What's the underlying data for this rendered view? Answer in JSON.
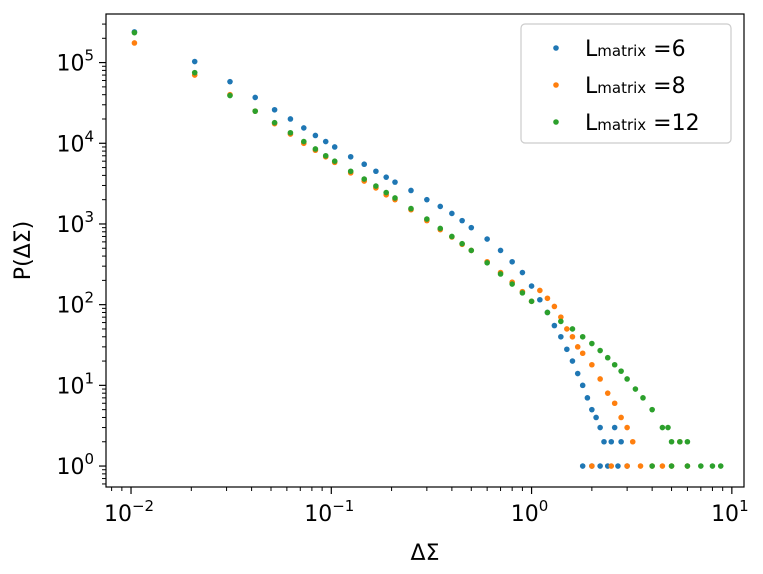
{
  "chart_data": {
    "type": "scatter",
    "xlabel": "ΔΣ",
    "ylabel": "P(ΔΣ)",
    "xscale": "log",
    "yscale": "log",
    "xlim": [
      0.0075,
      11.5
    ],
    "ylim": [
      0.55,
      400000
    ],
    "grid": false,
    "legend_position": "upper right",
    "x_ticks": [
      {
        "base": "10",
        "exp": "−2",
        "value": 0.01
      },
      {
        "base": "10",
        "exp": "−1",
        "value": 0.1
      },
      {
        "base": "10",
        "exp": "0",
        "value": 1
      },
      {
        "base": "10",
        "exp": "1",
        "value": 10
      }
    ],
    "y_ticks": [
      {
        "base": "10",
        "exp": "0",
        "value": 1
      },
      {
        "base": "10",
        "exp": "1",
        "value": 10
      },
      {
        "base": "10",
        "exp": "2",
        "value": 100
      },
      {
        "base": "10",
        "exp": "3",
        "value": 1000
      },
      {
        "base": "10",
        "exp": "4",
        "value": 10000
      },
      {
        "base": "10",
        "exp": "5",
        "value": 100000
      }
    ],
    "series": [
      {
        "name": "Lmatrix =6",
        "legend_main": "L",
        "legend_sub": "matrix",
        "legend_suffix": " =6",
        "color": "#1f77b4",
        "points": [
          [
            0.0104,
            240000
          ],
          [
            0.0208,
            103000
          ],
          [
            0.0312,
            58000
          ],
          [
            0.0417,
            37000
          ],
          [
            0.0521,
            26000
          ],
          [
            0.0625,
            20000
          ],
          [
            0.0729,
            15500
          ],
          [
            0.0833,
            12500
          ],
          [
            0.0938,
            10500
          ],
          [
            0.104,
            9000
          ],
          [
            0.125,
            6800
          ],
          [
            0.146,
            5500
          ],
          [
            0.167,
            4500
          ],
          [
            0.188,
            3800
          ],
          [
            0.208,
            3300
          ],
          [
            0.25,
            2600
          ],
          [
            0.3,
            2000
          ],
          [
            0.35,
            1650
          ],
          [
            0.4,
            1350
          ],
          [
            0.45,
            1100
          ],
          [
            0.5,
            900
          ],
          [
            0.6,
            650
          ],
          [
            0.7,
            470
          ],
          [
            0.8,
            340
          ],
          [
            0.9,
            250
          ],
          [
            1.0,
            170
          ],
          [
            1.1,
            115
          ],
          [
            1.2,
            80
          ],
          [
            1.3,
            55
          ],
          [
            1.4,
            40
          ],
          [
            1.5,
            28
          ],
          [
            1.6,
            20
          ],
          [
            1.7,
            14
          ],
          [
            1.8,
            10
          ],
          [
            1.9,
            7
          ],
          [
            2.0,
            5
          ],
          [
            2.1,
            4
          ],
          [
            2.2,
            3
          ],
          [
            2.3,
            2
          ],
          [
            2.5,
            2
          ],
          [
            1.8,
            1
          ],
          [
            2.0,
            1
          ],
          [
            2.2,
            1
          ],
          [
            2.4,
            1
          ],
          [
            2.7,
            1
          ],
          [
            3.0,
            1
          ],
          [
            2.6,
            3
          ],
          [
            2.8,
            2
          ]
        ]
      },
      {
        "name": "Lmatrix =8",
        "legend_main": "L",
        "legend_sub": "matrix",
        "legend_suffix": " =8",
        "color": "#ff7f0e",
        "points": [
          [
            0.0104,
            175000
          ],
          [
            0.0208,
            70000
          ],
          [
            0.0312,
            40000
          ],
          [
            0.0417,
            25000
          ],
          [
            0.0521,
            17500
          ],
          [
            0.0625,
            13000
          ],
          [
            0.0729,
            10000
          ],
          [
            0.0833,
            8200
          ],
          [
            0.0938,
            6800
          ],
          [
            0.104,
            5800
          ],
          [
            0.125,
            4300
          ],
          [
            0.146,
            3400
          ],
          [
            0.167,
            2800
          ],
          [
            0.188,
            2300
          ],
          [
            0.208,
            2000
          ],
          [
            0.25,
            1500
          ],
          [
            0.3,
            1100
          ],
          [
            0.35,
            850
          ],
          [
            0.4,
            690
          ],
          [
            0.45,
            560
          ],
          [
            0.5,
            470
          ],
          [
            0.6,
            340
          ],
          [
            0.7,
            250
          ],
          [
            0.8,
            190
          ],
          [
            0.9,
            145
          ],
          [
            1.0,
            110
          ],
          [
            1.1,
            150
          ],
          [
            1.2,
            120
          ],
          [
            1.3,
            95
          ],
          [
            1.4,
            70
          ],
          [
            1.5,
            50
          ],
          [
            1.6,
            40
          ],
          [
            1.7,
            30
          ],
          [
            1.8,
            25
          ],
          [
            2.0,
            18
          ],
          [
            2.2,
            12
          ],
          [
            2.4,
            8
          ],
          [
            2.6,
            6
          ],
          [
            2.8,
            4
          ],
          [
            3.0,
            3
          ],
          [
            3.2,
            2
          ],
          [
            2.0,
            1
          ],
          [
            2.5,
            1
          ],
          [
            3.0,
            1
          ],
          [
            3.5,
            1
          ],
          [
            4.0,
            1
          ],
          [
            4.5,
            1
          ],
          [
            5.0,
            1
          ],
          [
            5.5,
            2
          ],
          [
            6.0,
            1
          ]
        ]
      },
      {
        "name": "Lmatrix =12",
        "legend_main": "L",
        "legend_sub": "matrix",
        "legend_suffix": " =12",
        "color": "#2ca02c",
        "points": [
          [
            0.0104,
            235000
          ],
          [
            0.0208,
            75000
          ],
          [
            0.0312,
            39000
          ],
          [
            0.0417,
            25000
          ],
          [
            0.0521,
            18000
          ],
          [
            0.0625,
            13500
          ],
          [
            0.0729,
            10500
          ],
          [
            0.0833,
            8500
          ],
          [
            0.0938,
            7000
          ],
          [
            0.104,
            6000
          ],
          [
            0.125,
            4500
          ],
          [
            0.146,
            3600
          ],
          [
            0.167,
            2950
          ],
          [
            0.188,
            2450
          ],
          [
            0.208,
            2100
          ],
          [
            0.25,
            1550
          ],
          [
            0.3,
            1150
          ],
          [
            0.35,
            880
          ],
          [
            0.4,
            700
          ],
          [
            0.45,
            570
          ],
          [
            0.5,
            470
          ],
          [
            0.6,
            330
          ],
          [
            0.7,
            240
          ],
          [
            0.8,
            180
          ],
          [
            0.9,
            140
          ],
          [
            1.0,
            110
          ],
          [
            1.2,
            80
          ],
          [
            1.4,
            62
          ],
          [
            1.6,
            50
          ],
          [
            1.8,
            40
          ],
          [
            2.0,
            33
          ],
          [
            2.2,
            27
          ],
          [
            2.4,
            22
          ],
          [
            2.6,
            18
          ],
          [
            2.8,
            15
          ],
          [
            3.0,
            12
          ],
          [
            3.3,
            9
          ],
          [
            3.6,
            7
          ],
          [
            4.0,
            5
          ],
          [
            4.5,
            3
          ],
          [
            5.0,
            2
          ],
          [
            5.5,
            2
          ],
          [
            6.0,
            2
          ],
          [
            4.0,
            1
          ],
          [
            5.0,
            1
          ],
          [
            6.0,
            1
          ],
          [
            7.0,
            1
          ],
          [
            8.0,
            1
          ],
          [
            8.8,
            1
          ],
          [
            4.8,
            3
          ]
        ]
      }
    ]
  }
}
